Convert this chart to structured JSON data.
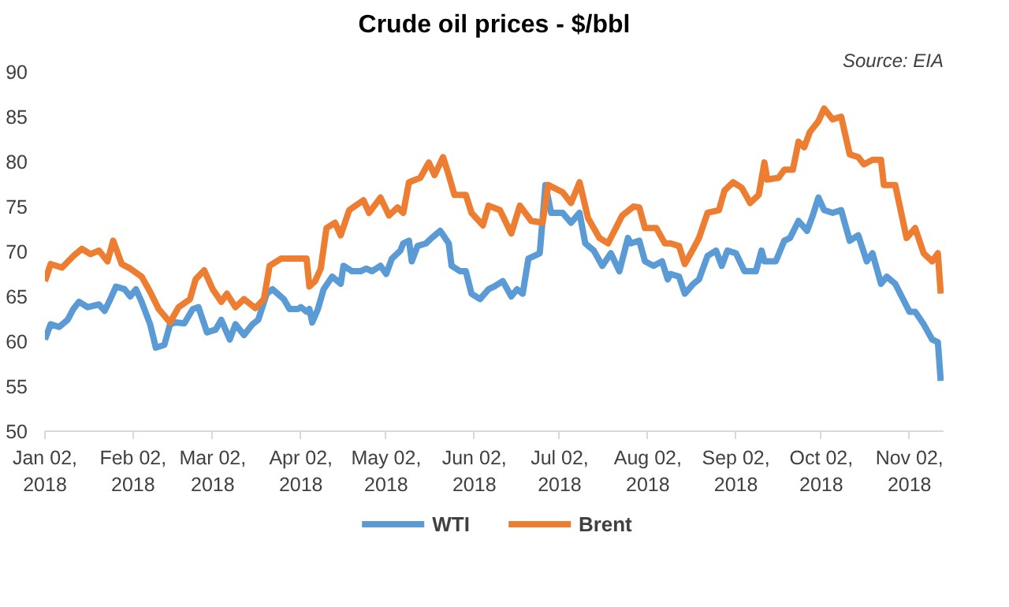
{
  "chart_data": {
    "type": "line",
    "title": "Crude oil prices - $/bbl",
    "annotations": [
      "Source: EIA"
    ],
    "xlim": [
      "2018-01-02",
      "2018-11-14"
    ],
    "ylim": [
      50,
      90
    ],
    "yticks": [
      50,
      55,
      60,
      65,
      70,
      75,
      80,
      85,
      90
    ],
    "xticks": [
      {
        "value": "2018-01-02",
        "label": "Jan 02,\n2018"
      },
      {
        "value": "2018-02-02",
        "label": "Feb 02,\n2018"
      },
      {
        "value": "2018-03-02",
        "label": "Mar 02,\n2018"
      },
      {
        "value": "2018-04-02",
        "label": "Apr 02,\n2018"
      },
      {
        "value": "2018-05-02",
        "label": "May 02,\n2018"
      },
      {
        "value": "2018-06-02",
        "label": "Jun 02,\n2018"
      },
      {
        "value": "2018-07-02",
        "label": "Jul 02,\n2018"
      },
      {
        "value": "2018-08-02",
        "label": "Aug 02,\n2018"
      },
      {
        "value": "2018-09-02",
        "label": "Sep 02,\n2018"
      },
      {
        "value": "2018-10-02",
        "label": "Oct 02,\n2018"
      },
      {
        "value": "2018-11-02",
        "label": "Nov 02,\n2018"
      }
    ],
    "grid": false,
    "legend": "bottom",
    "marker": "none",
    "series": [
      {
        "name": "WTI",
        "color": "#5b9bd5",
        "x": [
          "2018-01-02",
          "2018-01-04",
          "2018-01-07",
          "2018-01-10",
          "2018-01-12",
          "2018-01-14",
          "2018-01-17",
          "2018-01-21",
          "2018-01-23",
          "2018-01-25",
          "2018-01-27",
          "2018-01-30",
          "2018-02-01",
          "2018-02-03",
          "2018-02-05",
          "2018-02-08",
          "2018-02-10",
          "2018-02-13",
          "2018-02-15",
          "2018-02-17",
          "2018-02-20",
          "2018-02-23",
          "2018-02-25",
          "2018-02-28",
          "2018-03-03",
          "2018-03-05",
          "2018-03-08",
          "2018-03-10",
          "2018-03-13",
          "2018-03-16",
          "2018-03-18",
          "2018-03-21",
          "2018-03-23",
          "2018-03-27",
          "2018-03-29",
          "2018-04-01",
          "2018-04-02",
          "2018-04-04",
          "2018-04-05",
          "2018-04-06",
          "2018-04-08",
          "2018-04-10",
          "2018-04-13",
          "2018-04-16",
          "2018-04-17",
          "2018-04-20",
          "2018-04-23",
          "2018-04-25",
          "2018-04-27",
          "2018-04-30",
          "2018-05-02",
          "2018-05-04",
          "2018-05-07",
          "2018-05-08",
          "2018-05-10",
          "2018-05-11",
          "2018-05-13",
          "2018-05-16",
          "2018-05-18",
          "2018-05-21",
          "2018-05-24",
          "2018-05-25",
          "2018-05-28",
          "2018-05-30",
          "2018-06-01",
          "2018-06-04",
          "2018-06-07",
          "2018-06-09",
          "2018-06-12",
          "2018-06-15",
          "2018-06-17",
          "2018-06-19",
          "2018-06-21",
          "2018-06-25",
          "2018-06-27",
          "2018-06-29",
          "2018-07-03",
          "2018-07-06",
          "2018-07-09",
          "2018-07-11",
          "2018-07-14",
          "2018-07-17",
          "2018-07-20",
          "2018-07-23",
          "2018-07-26",
          "2018-07-27",
          "2018-07-30",
          "2018-08-01",
          "2018-08-04",
          "2018-08-07",
          "2018-08-09",
          "2018-08-10",
          "2018-08-13",
          "2018-08-15",
          "2018-08-18",
          "2018-08-20",
          "2018-08-23",
          "2018-08-26",
          "2018-08-28",
          "2018-08-30",
          "2018-09-02",
          "2018-09-05",
          "2018-09-09",
          "2018-09-11",
          "2018-09-12",
          "2018-09-16",
          "2018-09-19",
          "2018-09-21",
          "2018-09-24",
          "2018-09-27",
          "2018-09-29",
          "2018-10-01",
          "2018-10-03",
          "2018-10-06",
          "2018-10-09",
          "2018-10-12",
          "2018-10-15",
          "2018-10-18",
          "2018-10-20",
          "2018-10-23",
          "2018-10-25",
          "2018-10-28",
          "2018-11-02",
          "2018-11-04",
          "2018-11-07",
          "2018-11-10",
          "2018-11-12",
          "2018-11-13"
        ],
        "values": [
          60.2,
          61.9,
          61.6,
          62.4,
          63.6,
          64.4,
          63.8,
          64.1,
          63.4,
          64.7,
          66.1,
          65.8,
          65.0,
          65.8,
          64.4,
          61.9,
          59.3,
          59.6,
          61.9,
          62.1,
          62.0,
          63.6,
          63.8,
          61.0,
          61.3,
          62.4,
          60.2,
          61.9,
          60.7,
          61.9,
          62.4,
          65.3,
          65.8,
          64.7,
          63.6,
          63.6,
          63.8,
          63.3,
          63.6,
          62.1,
          63.6,
          65.8,
          67.2,
          66.4,
          68.4,
          67.8,
          67.8,
          68.1,
          67.8,
          68.4,
          67.5,
          69.2,
          70.1,
          70.9,
          71.2,
          68.9,
          70.6,
          70.9,
          71.5,
          72.3,
          70.9,
          68.4,
          67.8,
          67.8,
          65.3,
          64.7,
          65.8,
          66.1,
          66.7,
          65.0,
          65.8,
          65.3,
          69.2,
          69.8,
          77.4,
          74.3,
          74.3,
          73.2,
          74.3,
          70.9,
          70.1,
          68.4,
          69.8,
          67.8,
          71.5,
          70.9,
          71.2,
          68.9,
          68.4,
          68.9,
          66.9,
          67.5,
          67.2,
          65.3,
          66.4,
          66.9,
          69.5,
          70.1,
          68.4,
          70.1,
          69.8,
          67.8,
          67.8,
          70.1,
          68.9,
          68.9,
          71.2,
          71.5,
          73.4,
          72.3,
          74.0,
          76.0,
          74.6,
          74.3,
          74.6,
          71.2,
          71.8,
          68.9,
          69.8,
          66.4,
          67.2,
          66.4,
          63.3,
          63.3,
          61.9,
          60.2,
          59.9,
          55.6
        ]
      },
      {
        "name": "Brent",
        "color": "#ed7d31",
        "x": [
          "2018-01-02",
          "2018-01-04",
          "2018-01-08",
          "2018-01-12",
          "2018-01-15",
          "2018-01-18",
          "2018-01-21",
          "2018-01-24",
          "2018-01-26",
          "2018-01-29",
          "2018-02-01",
          "2018-02-05",
          "2018-02-08",
          "2018-02-11",
          "2018-02-15",
          "2018-02-18",
          "2018-02-22",
          "2018-02-24",
          "2018-02-27",
          "2018-03-02",
          "2018-03-05",
          "2018-03-07",
          "2018-03-10",
          "2018-03-13",
          "2018-03-17",
          "2018-03-20",
          "2018-03-22",
          "2018-03-26",
          "2018-03-28",
          "2018-04-04",
          "2018-04-05",
          "2018-04-07",
          "2018-04-09",
          "2018-04-11",
          "2018-04-14",
          "2018-04-16",
          "2018-04-19",
          "2018-04-24",
          "2018-04-26",
          "2018-04-30",
          "2018-05-03",
          "2018-05-06",
          "2018-05-08",
          "2018-05-10",
          "2018-05-14",
          "2018-05-17",
          "2018-05-19",
          "2018-05-22",
          "2018-05-24",
          "2018-05-26",
          "2018-05-30",
          "2018-06-01",
          "2018-06-05",
          "2018-06-07",
          "2018-06-11",
          "2018-06-15",
          "2018-06-18",
          "2018-06-22",
          "2018-06-26",
          "2018-06-28",
          "2018-07-03",
          "2018-07-06",
          "2018-07-09",
          "2018-07-12",
          "2018-07-16",
          "2018-07-19",
          "2018-07-24",
          "2018-07-28",
          "2018-07-30",
          "2018-08-01",
          "2018-08-05",
          "2018-08-08",
          "2018-08-10",
          "2018-08-13",
          "2018-08-15",
          "2018-08-18",
          "2018-08-20",
          "2018-08-23",
          "2018-08-27",
          "2018-08-29",
          "2018-09-01",
          "2018-09-04",
          "2018-09-07",
          "2018-09-10",
          "2018-09-12",
          "2018-09-13",
          "2018-09-17",
          "2018-09-19",
          "2018-09-22",
          "2018-09-24",
          "2018-09-26",
          "2018-09-28",
          "2018-10-01",
          "2018-10-03",
          "2018-10-06",
          "2018-10-09",
          "2018-10-12",
          "2018-10-15",
          "2018-10-17",
          "2018-10-20",
          "2018-10-23",
          "2018-10-24",
          "2018-10-28",
          "2018-11-01",
          "2018-11-04",
          "2018-11-07",
          "2018-11-10",
          "2018-11-12",
          "2018-11-13"
        ],
        "values": [
          66.7,
          68.6,
          68.2,
          69.5,
          70.3,
          69.7,
          70.1,
          68.9,
          71.2,
          68.6,
          68.1,
          67.2,
          65.5,
          63.6,
          62.1,
          63.8,
          64.7,
          66.9,
          67.9,
          65.8,
          64.4,
          65.3,
          63.8,
          64.7,
          63.7,
          64.7,
          68.4,
          69.2,
          69.2,
          69.2,
          66.1,
          66.7,
          68.1,
          72.6,
          73.2,
          71.8,
          74.6,
          75.7,
          74.3,
          76.0,
          74.0,
          74.9,
          74.3,
          77.7,
          78.2,
          79.9,
          78.5,
          80.5,
          78.5,
          76.3,
          76.3,
          74.3,
          72.9,
          75.1,
          74.6,
          72.0,
          75.1,
          73.4,
          73.2,
          77.4,
          76.6,
          75.4,
          77.7,
          73.7,
          71.5,
          70.9,
          74.0,
          75.0,
          74.9,
          72.6,
          72.6,
          70.9,
          70.9,
          70.6,
          68.6,
          70.3,
          71.5,
          74.3,
          74.6,
          76.8,
          77.7,
          77.1,
          75.4,
          76.3,
          79.9,
          78.0,
          78.2,
          79.1,
          79.1,
          82.2,
          81.6,
          83.3,
          84.5,
          85.9,
          84.7,
          85.0,
          80.8,
          80.5,
          79.7,
          80.2,
          80.2,
          77.4,
          77.4,
          71.5,
          72.6,
          69.8,
          68.9,
          69.8,
          65.3
        ]
      }
    ]
  }
}
